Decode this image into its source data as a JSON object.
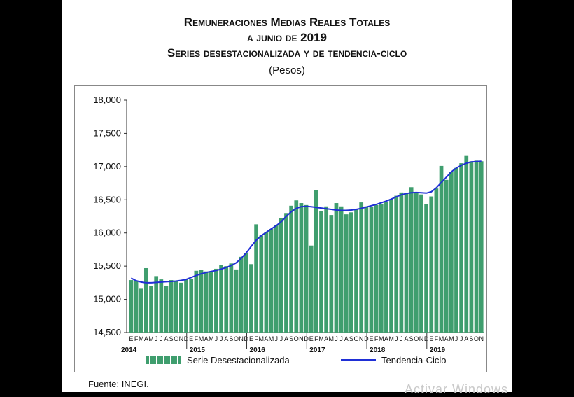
{
  "header": {
    "title_line1": "Remuneraciones Medias Reales Totales",
    "title_line2": "a junio de 2019",
    "title_line3": "Series desestacionalizada y de tendencia-ciclo",
    "subtitle": "(Pesos)"
  },
  "footer": {
    "source": "Fuente: INEGI.",
    "watermark": "Activar Windows"
  },
  "colors": {
    "bar": "#3f9e6e",
    "bar_light": "#a8dcbd",
    "trend": "#1f2fd6",
    "page_bg": "#ffffff",
    "outer_bg": "#000000"
  },
  "chart_data": {
    "type": "bar",
    "title": "Remuneraciones Medias Reales Totales a junio de 2019",
    "subtitle": "Series desestacionalizada y de tendencia-ciclo (Pesos)",
    "ylim": [
      14500,
      18000
    ],
    "yticks": [
      "14,500",
      "15,000",
      "15,500",
      "16,000",
      "16,500",
      "17,000",
      "17,500",
      "18,000"
    ],
    "grid": false,
    "legend_position": "bottom",
    "month_labels": [
      "E",
      "F",
      "M",
      "A",
      "M",
      "J",
      "J",
      "A",
      "S",
      "O",
      "N",
      "D"
    ],
    "year_labels": [
      "2014",
      "2015",
      "2016",
      "2017",
      "2018",
      "2019"
    ],
    "series": [
      {
        "name": "Serie Desestacionalizada",
        "type": "bar",
        "values": [
          15290,
          15270,
          15160,
          15470,
          15200,
          15350,
          15300,
          15200,
          15290,
          15280,
          15250,
          15300,
          15310,
          15430,
          15440,
          15420,
          15420,
          15460,
          15520,
          15500,
          15540,
          15450,
          15640,
          15700,
          15530,
          16130,
          15960,
          16010,
          16060,
          16120,
          16220,
          16300,
          16410,
          16490,
          16450,
          16420,
          15810,
          16650,
          16330,
          16400,
          16270,
          16450,
          16400,
          16280,
          16310,
          16360,
          16460,
          16400,
          16390,
          16420,
          16440,
          16470,
          16510,
          16560,
          16610,
          16600,
          16690,
          16610,
          16580,
          16430,
          16550,
          16670,
          17010,
          16800,
          16920,
          16980,
          17050,
          17160,
          17080,
          17090,
          17080
        ]
      },
      {
        "name": "Tendencia-Ciclo",
        "type": "line",
        "values": [
          15320,
          15280,
          15260,
          15250,
          15250,
          15255,
          15260,
          15265,
          15270,
          15275,
          15285,
          15300,
          15330,
          15360,
          15385,
          15405,
          15420,
          15435,
          15455,
          15480,
          15510,
          15550,
          15620,
          15700,
          15800,
          15890,
          15960,
          16010,
          16060,
          16110,
          16170,
          16250,
          16320,
          16370,
          16395,
          16400,
          16395,
          16385,
          16375,
          16365,
          16355,
          16345,
          16340,
          16340,
          16345,
          16355,
          16370,
          16390,
          16410,
          16430,
          16455,
          16480,
          16510,
          16545,
          16575,
          16595,
          16605,
          16610,
          16605,
          16600,
          16620,
          16680,
          16760,
          16840,
          16920,
          16980,
          17020,
          17050,
          17070,
          17075,
          17080
        ]
      }
    ]
  }
}
